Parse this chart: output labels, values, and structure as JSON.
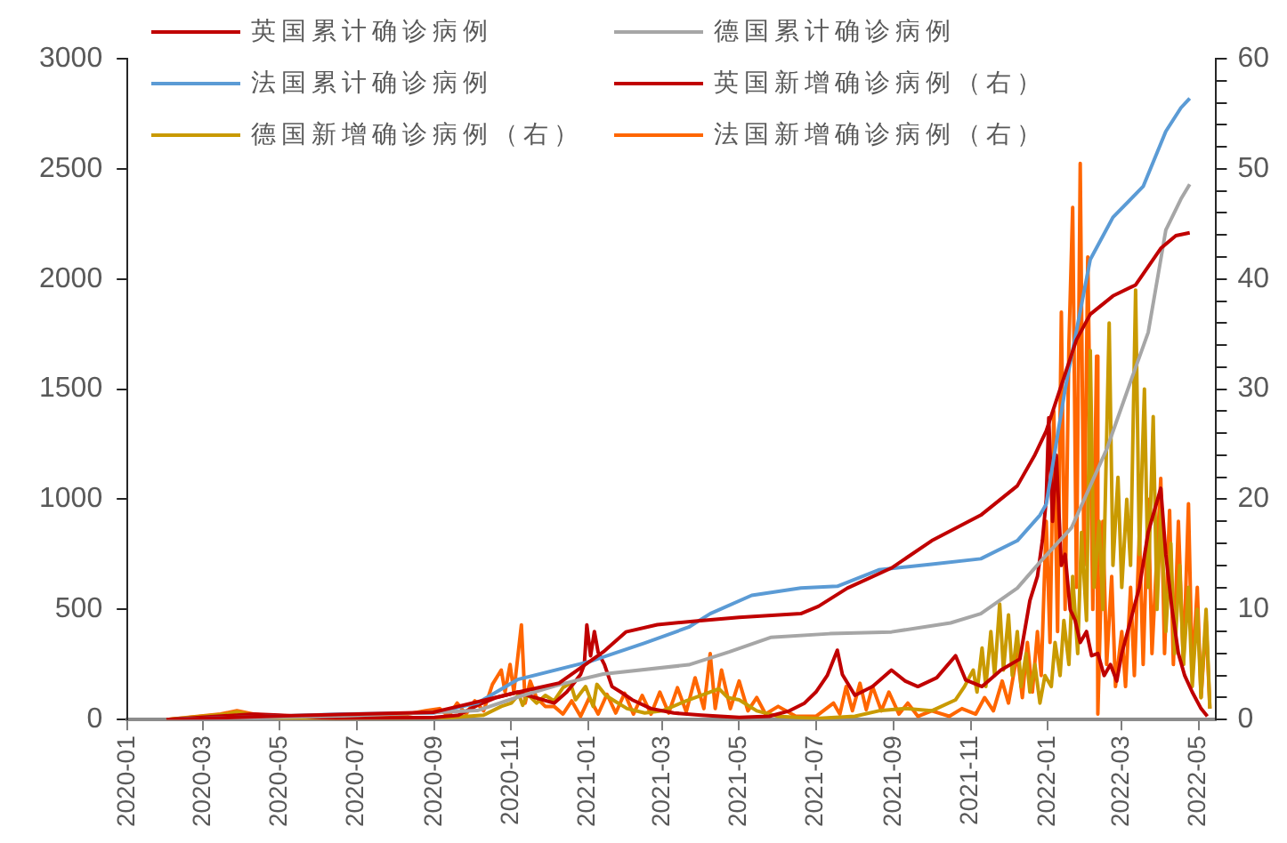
{
  "chart_data": {
    "type": "line",
    "legend": "top left",
    "marker": "none",
    "line_style": "solid",
    "grid": false,
    "xlim": [
      "2020-01-01",
      "2022-05-15"
    ],
    "xticks": [
      "2020-01",
      "2020-03",
      "2020-05",
      "2020-07",
      "2020-09",
      "2020-11",
      "2021-01",
      "2021-03",
      "2021-05",
      "2021-07",
      "2021-09",
      "2021-11",
      "2022-01",
      "2022-03",
      "2022-05"
    ],
    "ylim": [
      0,
      3000
    ],
    "yticks": [
      0,
      500,
      1000,
      1500,
      2000,
      2500,
      3000
    ],
    "y2lim": [
      0,
      60
    ],
    "y2ticks": [
      0,
      {
        "value": 2,
        "label": null
      },
      {
        "value": 4,
        "label": null
      },
      {
        "value": 6,
        "label": null
      },
      {
        "value": 8,
        "label": null
      },
      10,
      {
        "value": 12,
        "label": null
      },
      {
        "value": 14,
        "label": null
      },
      {
        "value": 16,
        "label": null
      },
      {
        "value": 18,
        "label": null
      },
      20,
      {
        "value": 22,
        "label": null
      },
      {
        "value": 24,
        "label": null
      },
      {
        "value": 26,
        "label": null
      },
      {
        "value": 28,
        "label": null
      },
      30,
      {
        "value": 32,
        "label": null
      },
      {
        "value": 34,
        "label": null
      },
      {
        "value": 36,
        "label": null
      },
      {
        "value": 38,
        "label": null
      },
      40,
      {
        "value": 42,
        "label": null
      },
      {
        "value": 44,
        "label": null
      },
      {
        "value": 46,
        "label": null
      },
      {
        "value": 48,
        "label": null
      },
      50,
      {
        "value": 52,
        "label": null
      },
      {
        "value": 54,
        "label": null
      },
      {
        "value": 56,
        "label": null
      },
      {
        "value": 58,
        "label": null
      },
      60
    ],
    "series": [
      {
        "name": "英国累计确诊病例",
        "color": "#c00000",
        "x": [
          "2020-02-01",
          "2020-05-04",
          "2020-08-31",
          "2020-11-06",
          "2020-12-09",
          "2021-01-13",
          "2021-01-31",
          "2021-02-25",
          "2021-03-29",
          "2021-05-01",
          "2021-06-19",
          "2021-07-03",
          "2021-07-26",
          "2021-08-30",
          "2021-10-01",
          "2021-11-09",
          "2021-12-08",
          "2021-12-22",
          "2021-12-31",
          "2022-01-24",
          "2022-02-04",
          "2022-02-22",
          "2022-03-12",
          "2022-03-22",
          "2022-04-01",
          "2022-04-13",
          "2022-04-24"
        ],
        "values": [
          0,
          17,
          33,
          124,
          166,
          307,
          398,
          431,
          448,
          464,
          481,
          514,
          597,
          688,
          812,
          928,
          1061,
          1202,
          1310,
          1724,
          1840,
          1923,
          1973,
          2056,
          2139,
          2197,
          2210
        ]
      },
      {
        "name": "德国累计确诊病例",
        "color": "#a6a6a6",
        "x": [
          "2020-02-01",
          "2020-06-21",
          "2020-10-05",
          "2020-11-09",
          "2020-12-10",
          "2021-01-13",
          "2021-03-22",
          "2021-04-23",
          "2021-05-26",
          "2021-07-12",
          "2021-08-30",
          "2021-10-16",
          "2021-11-09",
          "2021-12-08",
          "2021-12-26",
          "2022-01-20",
          "2022-02-17",
          "2022-03-08",
          "2022-03-22",
          "2022-04-05",
          "2022-04-17",
          "2022-04-24"
        ],
        "values": [
          0,
          17,
          41,
          108,
          160,
          207,
          249,
          307,
          373,
          390,
          398,
          439,
          481,
          597,
          715,
          870,
          1227,
          1534,
          1757,
          2222,
          2363,
          2430
        ]
      },
      {
        "name": "法国累计确诊病例",
        "color": "#5b9bd5",
        "x": [
          "2020-02-01",
          "2020-06-21",
          "2020-08-31",
          "2020-10-05",
          "2020-11-06",
          "2021-01-03",
          "2021-02-15",
          "2021-03-22",
          "2021-04-08",
          "2021-05-11",
          "2021-06-19",
          "2021-07-18",
          "2021-08-20",
          "2021-10-01",
          "2021-11-09",
          "2021-12-08",
          "2021-12-26",
          "2021-12-31",
          "2022-01-15",
          "2022-02-04",
          "2022-02-22",
          "2022-03-18",
          "2022-04-05",
          "2022-04-17",
          "2022-04-24"
        ],
        "values": [
          0,
          25,
          30,
          75,
          182,
          265,
          348,
          420,
          481,
          564,
          597,
          605,
          680,
          705,
          730,
          812,
          928,
          978,
          1500,
          2089,
          2280,
          2420,
          2670,
          2777,
          2820
        ]
      },
      {
        "name": "英国新增确诊病例（右）",
        "color": "#c00000",
        "axis": "y2",
        "x": [
          "2020-02-01",
          "2020-04-10",
          "2020-05-01",
          "2020-06-15",
          "2020-09-01",
          "2020-09-20",
          "2020-10-05",
          "2020-10-20",
          "2020-11-06",
          "2020-11-20",
          "2020-12-05",
          "2020-12-15",
          "2020-12-22",
          "2020-12-26",
          "2020-12-29",
          "2020-12-31",
          "2021-01-03",
          "2021-01-06",
          "2021-01-09",
          "2021-01-14",
          "2021-01-20",
          "2021-01-27",
          "2021-02-05",
          "2021-02-20",
          "2021-03-10",
          "2021-04-01",
          "2021-05-01",
          "2021-05-25",
          "2021-06-10",
          "2021-06-22",
          "2021-07-01",
          "2021-07-10",
          "2021-07-18",
          "2021-07-22",
          "2021-08-01",
          "2021-08-15",
          "2021-08-30",
          "2021-09-10",
          "2021-09-20",
          "2021-10-05",
          "2021-10-20",
          "2021-10-28",
          "2021-11-10",
          "2021-11-25",
          "2021-12-10",
          "2021-12-18",
          "2021-12-24",
          "2021-12-28",
          "2021-12-31",
          "2022-01-02",
          "2022-01-05",
          "2022-01-08",
          "2022-01-12",
          "2022-01-15",
          "2022-01-19",
          "2022-01-23",
          "2022-01-27",
          "2022-02-01",
          "2022-02-05",
          "2022-02-10",
          "2022-02-15",
          "2022-02-20",
          "2022-02-25",
          "2022-03-01",
          "2022-03-08",
          "2022-03-15",
          "2022-03-22",
          "2022-04-01",
          "2022-04-05",
          "2022-04-10",
          "2022-04-15",
          "2022-04-20",
          "2022-04-26",
          "2022-05-03",
          "2022-05-08"
        ],
        "values": [
          0,
          0.5,
          0.4,
          0.1,
          0.2,
          0.4,
          1.3,
          2,
          2.5,
          2,
          1.5,
          2.5,
          3.5,
          4.1,
          5,
          8.6,
          5.8,
          8,
          6.1,
          5,
          3,
          2.5,
          1.8,
          1,
          0.6,
          0.4,
          0.2,
          0.3,
          0.8,
          1.5,
          2.5,
          4,
          6.3,
          4.1,
          2.2,
          3,
          4.5,
          3.5,
          3,
          3.8,
          5.8,
          3.6,
          3,
          4.5,
          5.5,
          10.8,
          13,
          16.3,
          20,
          27.4,
          18,
          24,
          14,
          15,
          10,
          9,
          7,
          8,
          5.8,
          6,
          4,
          5,
          3.5,
          6,
          9,
          12,
          17,
          21,
          15,
          10,
          6,
          4,
          2.5,
          1,
          0.3
        ]
      },
      {
        "name": "德国新增确诊病例（右）",
        "color": "#c99a00",
        "axis": "y2",
        "x": [
          "2020-02-01",
          "2020-03-20",
          "2020-03-28",
          "2020-04-10",
          "2020-05-01",
          "2020-08-01",
          "2020-09-15",
          "2020-10-10",
          "2020-10-24",
          "2020-11-01",
          "2020-11-07",
          "2020-11-10",
          "2020-11-14",
          "2020-11-21",
          "2020-11-28",
          "2020-12-05",
          "2020-12-12",
          "2020-12-18",
          "2020-12-22",
          "2020-12-30",
          "2021-01-05",
          "2021-01-08",
          "2021-01-15",
          "2021-01-22",
          "2021-02-01",
          "2021-02-15",
          "2021-03-01",
          "2021-03-20",
          "2021-04-01",
          "2021-04-15",
          "2021-04-22",
          "2021-05-01",
          "2021-05-15",
          "2021-06-01",
          "2021-07-01",
          "2021-08-01",
          "2021-08-20",
          "2021-09-10",
          "2021-10-01",
          "2021-10-20",
          "2021-10-27",
          "2021-11-03",
          "2021-11-06",
          "2021-11-10",
          "2021-11-13",
          "2021-11-17",
          "2021-11-20",
          "2021-11-24",
          "2021-11-27",
          "2021-12-01",
          "2021-12-04",
          "2021-12-08",
          "2021-12-11",
          "2021-12-15",
          "2021-12-18",
          "2021-12-22",
          "2021-12-26",
          "2021-12-30",
          "2022-01-04",
          "2022-01-07",
          "2022-01-11",
          "2022-01-14",
          "2022-01-18",
          "2022-01-21",
          "2022-01-25",
          "2022-01-28",
          "2022-02-01",
          "2022-02-04",
          "2022-02-07",
          "2022-02-11",
          "2022-02-14",
          "2022-02-19",
          "2022-02-22",
          "2022-02-26",
          "2022-03-01",
          "2022-03-05",
          "2022-03-08",
          "2022-03-12",
          "2022-03-15",
          "2022-03-19",
          "2022-03-22",
          "2022-03-26",
          "2022-03-29",
          "2022-04-01",
          "2022-04-05",
          "2022-04-09",
          "2022-04-12",
          "2022-04-16",
          "2022-04-19",
          "2022-04-23",
          "2022-04-26",
          "2022-04-30",
          "2022-05-03",
          "2022-05-07",
          "2022-05-10"
        ],
        "values": [
          0,
          0.5,
          0.7,
          0.4,
          0.1,
          0.1,
          0.2,
          0.4,
          1.2,
          1.5,
          2.3,
          1.3,
          2.3,
          1.5,
          2.2,
          1.7,
          2.9,
          3.3,
          1.8,
          3,
          1.2,
          3.2,
          2.2,
          1.7,
          1,
          0.6,
          0.8,
          1.7,
          2.2,
          2.8,
          2,
          1.8,
          0.8,
          0.3,
          0.1,
          0.3,
          0.8,
          1,
          0.8,
          1.8,
          3,
          4.5,
          2.5,
          6.5,
          3,
          8,
          4,
          10.5,
          4.5,
          9.5,
          4,
          8,
          3,
          6,
          2.5,
          5,
          1.5,
          4,
          3,
          7,
          4,
          9,
          5,
          13,
          6,
          17,
          9,
          33.5,
          12,
          18,
          10,
          36,
          14,
          22,
          12,
          20,
          14,
          39,
          15,
          30,
          12,
          27.5,
          10,
          19,
          8,
          16,
          6,
          14,
          5,
          12,
          3,
          10,
          2,
          10,
          1
        ]
      },
      {
        "name": "法国新增确诊病例（右）",
        "color": "#ff6600",
        "axis": "y2",
        "x": [
          "2020-02-01",
          "2020-03-15",
          "2020-03-28",
          "2020-04-10",
          "2020-05-01",
          "2020-06-15",
          "2020-08-01",
          "2020-08-25",
          "2020-09-05",
          "2020-09-12",
          "2020-09-19",
          "2020-09-26",
          "2020-10-03",
          "2020-10-10",
          "2020-10-17",
          "2020-10-24",
          "2020-10-27",
          "2020-10-31",
          "2020-11-03",
          "2020-11-09",
          "2020-11-12",
          "2020-11-16",
          "2020-11-21",
          "2020-11-28",
          "2020-12-05",
          "2020-12-12",
          "2020-12-19",
          "2020-12-26",
          "2021-01-02",
          "2021-01-09",
          "2021-01-16",
          "2021-01-23",
          "2021-01-30",
          "2021-02-06",
          "2021-02-13",
          "2021-02-20",
          "2021-02-27",
          "2021-03-06",
          "2021-03-13",
          "2021-03-20",
          "2021-03-27",
          "2021-04-03",
          "2021-04-08",
          "2021-04-12",
          "2021-04-17",
          "2021-04-24",
          "2021-05-01",
          "2021-05-08",
          "2021-05-15",
          "2021-05-22",
          "2021-06-01",
          "2021-06-15",
          "2021-07-01",
          "2021-07-15",
          "2021-07-20",
          "2021-07-25",
          "2021-07-30",
          "2021-08-05",
          "2021-08-10",
          "2021-08-15",
          "2021-08-22",
          "2021-08-28",
          "2021-09-05",
          "2021-09-12",
          "2021-09-20",
          "2021-10-01",
          "2021-10-15",
          "2021-10-25",
          "2021-11-05",
          "2021-11-12",
          "2021-11-19",
          "2021-11-26",
          "2021-12-01",
          "2021-12-08",
          "2021-12-12",
          "2021-12-16",
          "2021-12-20",
          "2021-12-24",
          "2021-12-27",
          "2021-12-31",
          "2022-01-03",
          "2022-01-06",
          "2022-01-09",
          "2022-01-12",
          "2022-01-15",
          "2022-01-18",
          "2022-01-21",
          "2022-01-24",
          "2022-01-27",
          "2022-01-30",
          "2022-02-02",
          "2022-02-06",
          "2022-02-09",
          "2022-02-10",
          "2022-02-14",
          "2022-02-17",
          "2022-02-21",
          "2022-02-24",
          "2022-03-01",
          "2022-03-04",
          "2022-03-08",
          "2022-03-11",
          "2022-03-15",
          "2022-03-18",
          "2022-03-22",
          "2022-03-25",
          "2022-04-01",
          "2022-04-04",
          "2022-04-08",
          "2022-04-11",
          "2022-04-15",
          "2022-04-19",
          "2022-04-23",
          "2022-04-26",
          "2022-04-30",
          "2022-05-03",
          "2022-05-07",
          "2022-05-10"
        ],
        "values": [
          0,
          0.5,
          0.8,
          0.5,
          0.2,
          0.1,
          0.3,
          0.8,
          1,
          0.3,
          1.5,
          0.5,
          1.7,
          0.8,
          3.2,
          4.5,
          2.5,
          5,
          2.5,
          8.6,
          1.5,
          3.5,
          2,
          1.2,
          1.2,
          0.5,
          1.7,
          0.3,
          2,
          0.5,
          2.3,
          0.6,
          2.4,
          0.5,
          2.2,
          0.5,
          2.5,
          0.6,
          2.9,
          0.7,
          3.8,
          1,
          6,
          1,
          4.5,
          1,
          3.5,
          0.8,
          2,
          0.5,
          1.2,
          0.3,
          0.3,
          1.5,
          0.5,
          3,
          0.8,
          3.3,
          0.9,
          3,
          0.8,
          2.5,
          0.5,
          1.5,
          0.3,
          0.8,
          0.3,
          1,
          0.5,
          2,
          0.8,
          3.5,
          1.5,
          6,
          2,
          7,
          2.5,
          8,
          4,
          18,
          7,
          28,
          8,
          37,
          10,
          34,
          46.5,
          12,
          50.5,
          14,
          42,
          10,
          33,
          0.5,
          18,
          5,
          13,
          3,
          8,
          3,
          12,
          4,
          17,
          5,
          20,
          6,
          21.9,
          6,
          19,
          5,
          18,
          5,
          19.6,
          4,
          12,
          2,
          9,
          1
        ]
      }
    ]
  }
}
